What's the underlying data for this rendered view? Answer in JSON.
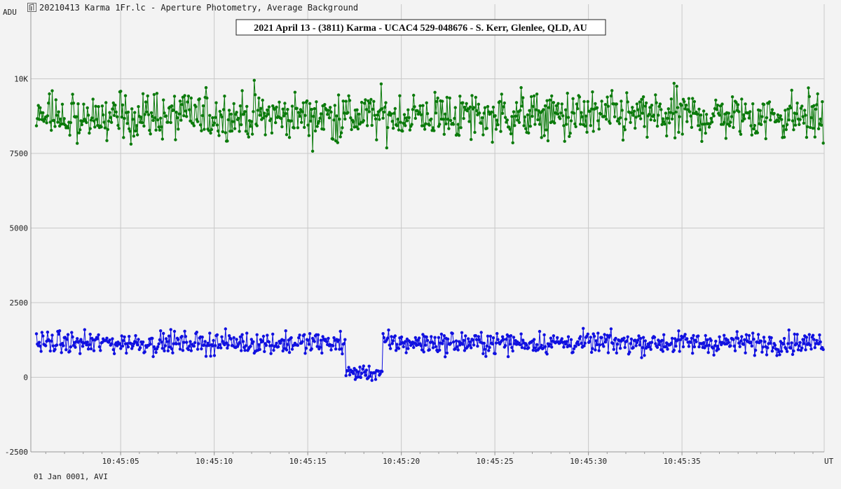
{
  "window": {
    "title": "20210413 Karma 1Fr.lc - Aperture Photometry, Average Background",
    "icon": "lightcurve-icon"
  },
  "footer": {
    "date_text": "01 Jan 0001, AVI"
  },
  "colors": {
    "series1": "#0a7a0a",
    "series2": "#1010e0",
    "grid": "#c8c8c8",
    "background": "#f3f3f3"
  },
  "chart_data": {
    "type": "line",
    "title": "2021 April 13 - (3811) Karma - UCAC4 529-048676 - S. Kerr, Glenlee, QLD, AU",
    "ylabel": "ADU",
    "xlabel": "UT",
    "ylim": [
      -2500,
      12500
    ],
    "yticks": [
      -2500,
      0,
      2500,
      5000,
      7500,
      10000
    ],
    "ytick_labels": [
      "-2500",
      "0",
      "2500",
      "5000",
      "7500",
      "10K"
    ],
    "xlim": [
      0.2,
      42.6
    ],
    "xticks": [
      5,
      10,
      15,
      20,
      25,
      30,
      35
    ],
    "xtick_labels": [
      "10:45:05",
      "10:45:10",
      "10:45:15",
      "10:45:20",
      "10:45:25",
      "10:45:30",
      "10:45:35"
    ],
    "grid": true,
    "markers": true,
    "series": [
      {
        "color": "#0a7a0a",
        "baseline": 8750,
        "noise": 750,
        "min": 6800,
        "max": 11300
      },
      {
        "color": "#1010e0",
        "baseline": 1150,
        "noise": 330,
        "min": -500,
        "max": 2200,
        "dip": {
          "start": 17.0,
          "end": 19.0,
          "level": 150
        }
      }
    ]
  }
}
